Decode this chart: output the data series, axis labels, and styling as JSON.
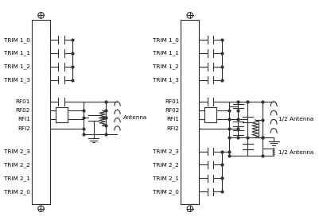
{
  "bg_color": "#ffffff",
  "line_color": "#303030",
  "text_color": "#000000",
  "font_size": 5.2,
  "fig_width": 4.01,
  "fig_height": 2.82,
  "left": {
    "trim1_labels": [
      "TRIM 1_0",
      "TRIM 1_1",
      "TRIM 1_2",
      "TRIM 1_3"
    ],
    "rf_labels": [
      "RF01",
      "RF02",
      "RFI1",
      "RFI2"
    ],
    "trim2_labels": [
      "TRIM 2_3",
      "TRIM 2_2",
      "TRIM 2_1",
      "TRIM 2_0"
    ],
    "antenna_label": "Antenna"
  },
  "right": {
    "trim1_labels": [
      "TRIM 1_0",
      "TRIM 1_1",
      "TRIM 1_2",
      "TRIM 1_3"
    ],
    "rf_labels": [
      "RF01",
      "RF02",
      "RFI1",
      "RFI2"
    ],
    "trim2_labels": [
      "TRIM 2_3",
      "TRIM 2_2",
      "TRIM 2_1",
      "TRIM 2_0"
    ],
    "ant_label1": "1/2 Antenna",
    "ant_label2": "1/2 Antenna"
  }
}
